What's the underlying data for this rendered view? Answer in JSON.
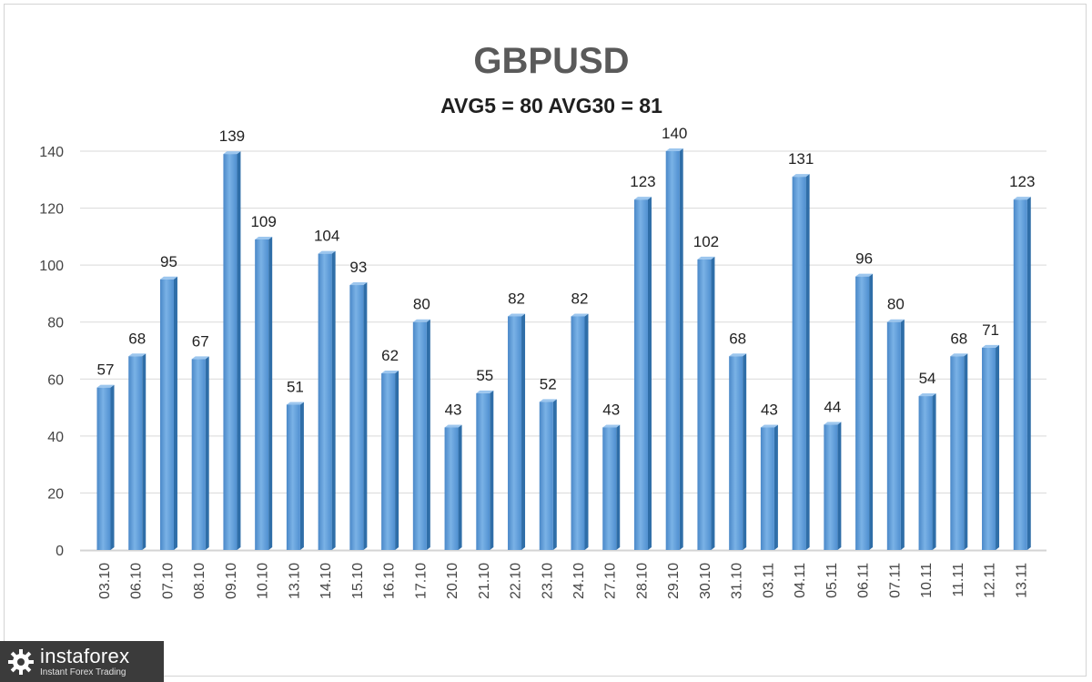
{
  "chart_data": {
    "type": "bar",
    "title": "GBPUSD",
    "subtitle": "AVG5 = 80 AVG30 = 81",
    "categories": [
      "03.10",
      "06.10",
      "07.10",
      "08.10",
      "09.10",
      "10.10",
      "13.10",
      "14.10",
      "15.10",
      "16.10",
      "17.10",
      "20.10",
      "21.10",
      "22.10",
      "23.10",
      "24.10",
      "27.10",
      "28.10",
      "29.10",
      "30.10",
      "31.10",
      "03.11",
      "04.11",
      "05.11",
      "06.11",
      "07.11",
      "10.11",
      "11.11",
      "12.11",
      "13.11"
    ],
    "values": [
      57,
      68,
      95,
      67,
      139,
      109,
      51,
      104,
      93,
      62,
      80,
      43,
      55,
      82,
      52,
      82,
      43,
      123,
      140,
      102,
      68,
      43,
      131,
      44,
      96,
      80,
      54,
      68,
      71,
      123
    ],
    "ylim": [
      0,
      140
    ],
    "yticks": [
      0,
      20,
      40,
      60,
      80,
      100,
      120,
      140
    ],
    "grid": true,
    "bar_color": "#5b9bd5"
  },
  "logo": {
    "brand": "instaforex",
    "tagline": "Instant Forex Trading"
  }
}
